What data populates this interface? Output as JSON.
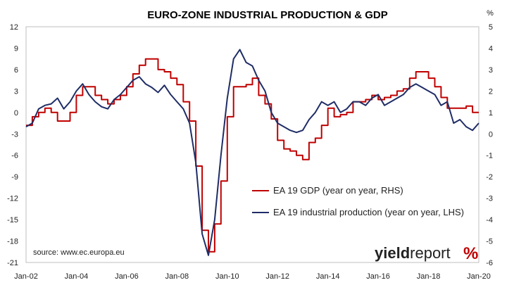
{
  "chart_data": {
    "type": "line",
    "title": "EURO-ZONE INDUSTRIAL PRODUCTION & GDP",
    "right_unit": "%",
    "x_tick_labels": [
      "Jan-02",
      "Jan-04",
      "Jan-06",
      "Jan-08",
      "Jan-10",
      "Jan-12",
      "Jan-14",
      "Jan-16",
      "Jan-18",
      "Jan-20"
    ],
    "x_range": [
      2002.0,
      2020.0
    ],
    "y_left": {
      "min": -21,
      "max": 12,
      "step": 3
    },
    "y_right": {
      "min": -6,
      "max": 5,
      "step": 1
    },
    "grid": false,
    "legend_position": "center-right",
    "series": [
      {
        "name": "EA 19 GDP (year on year, RHS)",
        "axis": "right",
        "color": "#c00000",
        "style": "step",
        "x": [
          2002.0,
          2002.25,
          2002.5,
          2002.75,
          2003.0,
          2003.25,
          2003.5,
          2003.75,
          2004.0,
          2004.25,
          2004.5,
          2004.75,
          2005.0,
          2005.25,
          2005.5,
          2005.75,
          2006.0,
          2006.25,
          2006.5,
          2006.75,
          2007.0,
          2007.25,
          2007.5,
          2007.75,
          2008.0,
          2008.25,
          2008.5,
          2008.75,
          2009.0,
          2009.25,
          2009.5,
          2009.75,
          2010.0,
          2010.25,
          2010.5,
          2010.75,
          2011.0,
          2011.25,
          2011.5,
          2011.75,
          2012.0,
          2012.25,
          2012.5,
          2012.75,
          2013.0,
          2013.25,
          2013.5,
          2013.75,
          2014.0,
          2014.25,
          2014.5,
          2014.75,
          2015.0,
          2015.25,
          2015.5,
          2015.75,
          2016.0,
          2016.25,
          2016.5,
          2016.75,
          2017.0,
          2017.25,
          2017.5,
          2017.75,
          2018.0,
          2018.25,
          2018.5,
          2018.75,
          2019.0,
          2019.25,
          2019.5,
          2019.75
        ],
        "values": [
          0.4,
          0.8,
          1.0,
          1.2,
          1.0,
          0.6,
          0.6,
          1.0,
          1.8,
          2.2,
          2.2,
          1.8,
          1.6,
          1.4,
          1.6,
          1.8,
          2.2,
          2.8,
          3.2,
          3.5,
          3.5,
          3.0,
          2.9,
          2.6,
          2.3,
          1.5,
          0.6,
          -1.5,
          -4.5,
          -5.5,
          -4.2,
          -2.2,
          0.8,
          2.2,
          2.2,
          2.3,
          2.6,
          1.8,
          1.4,
          0.7,
          -0.3,
          -0.7,
          -0.8,
          -1.0,
          -1.2,
          -0.4,
          -0.2,
          0.4,
          1.2,
          0.8,
          0.9,
          1.0,
          1.5,
          1.5,
          1.6,
          1.8,
          1.6,
          1.7,
          1.8,
          2.0,
          2.1,
          2.6,
          2.9,
          2.9,
          2.6,
          2.2,
          1.7,
          1.2,
          1.2,
          1.2,
          1.3,
          1.0
        ]
      },
      {
        "name": "EA 19 industrial production (year on year, LHS)",
        "axis": "left",
        "color": "#1f2d66",
        "style": "line",
        "x": [
          2002.0,
          2002.25,
          2002.5,
          2002.75,
          2003.0,
          2003.25,
          2003.5,
          2003.75,
          2004.0,
          2004.25,
          2004.5,
          2004.75,
          2005.0,
          2005.25,
          2005.5,
          2005.75,
          2006.0,
          2006.25,
          2006.5,
          2006.75,
          2007.0,
          2007.25,
          2007.5,
          2007.75,
          2008.0,
          2008.25,
          2008.5,
          2008.75,
          2009.0,
          2009.25,
          2009.5,
          2009.75,
          2010.0,
          2010.25,
          2010.5,
          2010.75,
          2011.0,
          2011.25,
          2011.5,
          2011.75,
          2012.0,
          2012.25,
          2012.5,
          2012.75,
          2013.0,
          2013.25,
          2013.5,
          2013.75,
          2014.0,
          2014.25,
          2014.5,
          2014.75,
          2015.0,
          2015.25,
          2015.5,
          2015.75,
          2016.0,
          2016.25,
          2016.5,
          2016.75,
          2017.0,
          2017.25,
          2017.5,
          2017.75,
          2018.0,
          2018.25,
          2018.5,
          2018.75,
          2019.0,
          2019.25,
          2019.5,
          2019.75,
          2020.0
        ],
        "values": [
          -2.0,
          -1.5,
          0.5,
          1.0,
          1.2,
          2.0,
          0.5,
          1.5,
          3.0,
          4.0,
          2.5,
          1.5,
          0.8,
          0.5,
          1.8,
          2.5,
          3.5,
          4.5,
          5.0,
          4.0,
          3.5,
          2.8,
          3.8,
          2.5,
          1.5,
          0.5,
          -1.5,
          -7.0,
          -17.0,
          -20.0,
          -15.0,
          -6.0,
          2.0,
          7.5,
          8.8,
          7.0,
          6.5,
          4.5,
          3.0,
          0.0,
          -1.5,
          -2.0,
          -2.5,
          -2.8,
          -2.5,
          -1.0,
          0.0,
          1.5,
          1.0,
          1.5,
          0.0,
          0.5,
          1.5,
          1.5,
          1.0,
          2.0,
          2.5,
          1.0,
          1.5,
          2.0,
          2.5,
          3.5,
          4.0,
          3.5,
          3.0,
          2.5,
          1.0,
          1.5,
          -1.5,
          -1.0,
          -2.0,
          -2.5,
          -1.5
        ]
      }
    ]
  },
  "source_note": "source: www.ec.europa.eu",
  "logo": {
    "word_a": "yield",
    "word_b": "report",
    "mark": "%"
  }
}
